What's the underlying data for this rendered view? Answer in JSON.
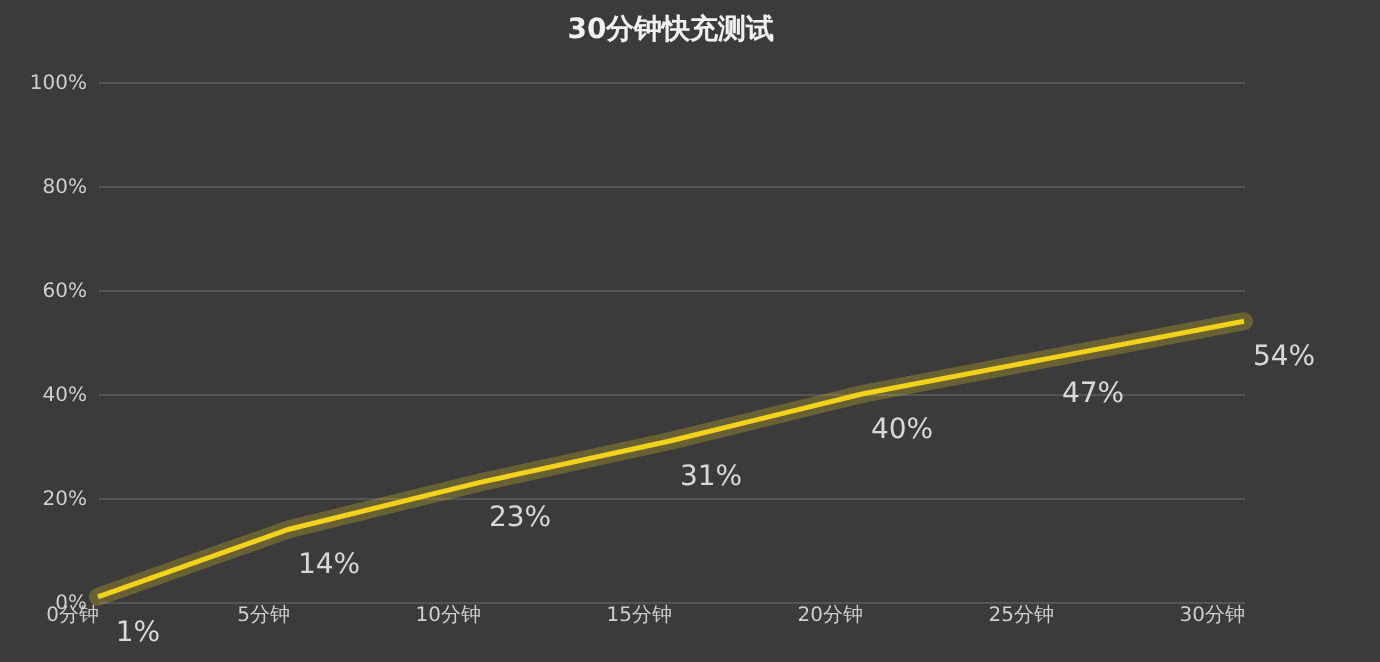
{
  "chart_data": {
    "type": "line",
    "title": "30分钟快充测试",
    "categories": [
      "0分钟",
      "5分钟",
      "10分钟",
      "15分钟",
      "20分钟",
      "25分钟",
      "30分钟"
    ],
    "series": [
      {
        "color": "#f2d21b",
        "values": [
          1,
          14,
          23,
          31,
          40,
          47,
          54
        ],
        "value_labels": [
          "1%",
          "14%",
          "23%",
          "31%",
          "40%",
          "47%",
          "54%"
        ]
      }
    ],
    "ylim": [
      0,
      100
    ],
    "yticks": [
      {
        "value": 0,
        "label": "0%"
      },
      {
        "value": 20,
        "label": "20%"
      },
      {
        "value": 40,
        "label": "40%"
      },
      {
        "value": 60,
        "label": "60%"
      },
      {
        "value": 80,
        "label": "80%"
      },
      {
        "value": 100,
        "label": "100%"
      }
    ],
    "grid": "y",
    "marker": "none",
    "line_style": "solid",
    "legend": false
  }
}
